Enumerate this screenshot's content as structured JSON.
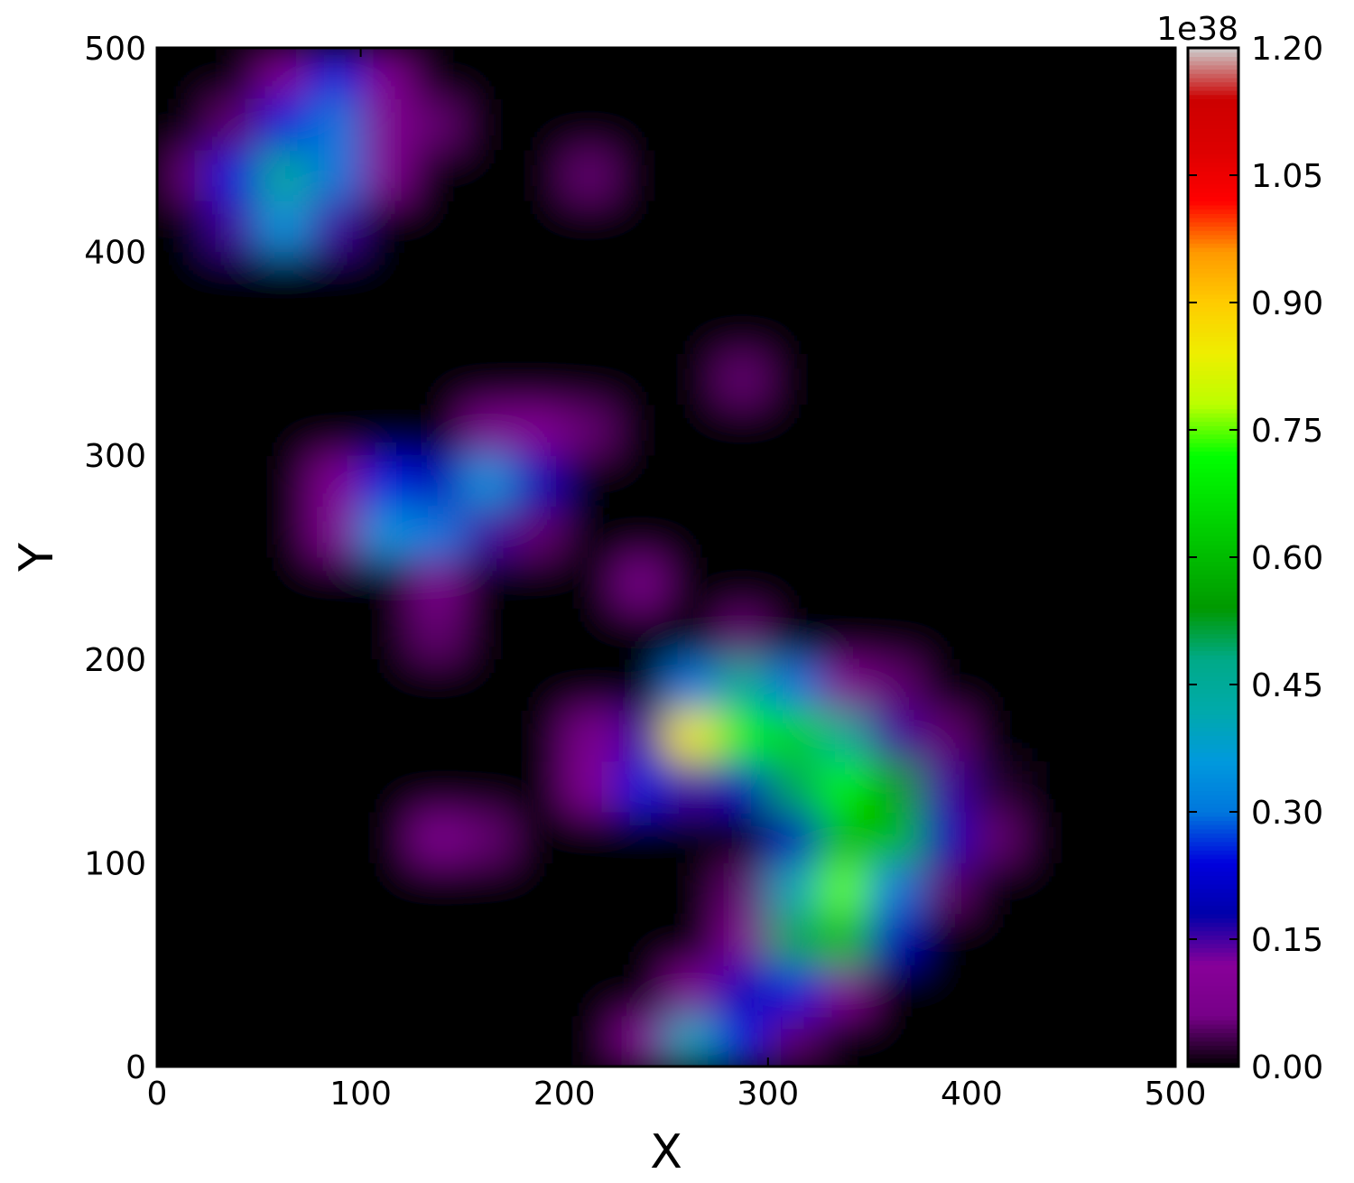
{
  "chart_data": {
    "type": "heatmap",
    "xlabel": "X",
    "ylabel": "Y",
    "xlim": [
      0,
      500
    ],
    "ylim": [
      0,
      500
    ],
    "xticks": [
      0,
      100,
      200,
      300,
      400,
      500
    ],
    "yticks": [
      0,
      100,
      200,
      300,
      400,
      500
    ],
    "colormap": "nipy_spectral",
    "zlim": [
      0,
      1.2
    ],
    "colorbar_offset_label": "1e38",
    "zticks": [
      {
        "value": 0,
        "label": "0.00"
      },
      {
        "value": 0.15,
        "label": "0.15"
      },
      {
        "value": 0.3,
        "label": "0.30"
      },
      {
        "value": 0.45,
        "label": "0.45"
      },
      {
        "value": 0.6,
        "label": "0.60"
      },
      {
        "value": 0.75,
        "label": "0.75"
      },
      {
        "value": 0.9,
        "label": "0.90"
      },
      {
        "value": 1.05,
        "label": "1.05"
      },
      {
        "value": 1.2,
        "label": "1.20"
      }
    ],
    "x": [
      12.5,
      37.5,
      62.5,
      87.5,
      112.5,
      137.5,
      162.5,
      187.5,
      212.5,
      237.5,
      262.5,
      287.5,
      312.5,
      337.5,
      362.5,
      387.5,
      412.5,
      437.5,
      462.5,
      487.5
    ],
    "y": [
      12.5,
      37.5,
      62.5,
      87.5,
      112.5,
      137.5,
      162.5,
      187.5,
      212.5,
      237.5,
      262.5,
      287.5,
      312.5,
      337.5,
      362.5,
      387.5,
      412.5,
      437.5,
      462.5,
      487.5
    ],
    "z": [
      [
        0,
        0,
        0,
        0,
        0,
        0,
        0,
        0,
        0,
        0.1,
        0.4,
        0.25,
        0.05,
        0,
        0,
        0,
        0,
        0,
        0,
        0
      ],
      [
        0,
        0,
        0,
        0,
        0,
        0,
        0,
        0,
        0,
        0,
        0.1,
        0.2,
        0.25,
        0.1,
        0,
        0,
        0,
        0,
        0,
        0
      ],
      [
        0,
        0,
        0,
        0,
        0,
        0,
        0,
        0,
        0,
        0,
        0,
        0.1,
        0.5,
        0.6,
        0.2,
        0,
        0,
        0,
        0,
        0
      ],
      [
        0,
        0,
        0,
        0,
        0,
        0,
        0,
        0,
        0,
        0,
        0,
        0.05,
        0.4,
        0.75,
        0.3,
        0.05,
        0,
        0,
        0,
        0
      ],
      [
        0,
        0,
        0,
        0,
        0,
        0.08,
        0.05,
        0,
        0,
        0,
        0,
        0,
        0.2,
        0.6,
        0.6,
        0.2,
        0.05,
        0,
        0,
        0
      ],
      [
        0,
        0,
        0,
        0,
        0,
        0,
        0,
        0,
        0.1,
        0.25,
        0.15,
        0.2,
        0.5,
        0.7,
        0.55,
        0.15,
        0.02,
        0,
        0,
        0
      ],
      [
        0,
        0,
        0,
        0,
        0,
        0,
        0,
        0,
        0.08,
        0.15,
        0.85,
        0.7,
        0.65,
        0.45,
        0.15,
        0.05,
        0,
        0,
        0,
        0
      ],
      [
        0,
        0,
        0,
        0,
        0,
        0,
        0,
        0,
        0,
        0,
        0.3,
        0.45,
        0.3,
        0.1,
        0.05,
        0,
        0,
        0,
        0,
        0
      ],
      [
        0,
        0,
        0,
        0,
        0,
        0.05,
        0,
        0,
        0,
        0,
        0,
        0.05,
        0,
        0,
        0,
        0,
        0,
        0,
        0,
        0
      ],
      [
        0,
        0,
        0,
        0,
        0,
        0.08,
        0,
        0,
        0,
        0.06,
        0,
        0,
        0,
        0,
        0,
        0,
        0,
        0,
        0,
        0
      ],
      [
        0,
        0,
        0,
        0.1,
        0.35,
        0.3,
        0.15,
        0.05,
        0,
        0,
        0,
        0,
        0,
        0,
        0,
        0,
        0,
        0,
        0,
        0
      ],
      [
        0,
        0,
        0,
        0.1,
        0.25,
        0.2,
        0.35,
        0.2,
        0,
        0,
        0,
        0,
        0,
        0,
        0,
        0,
        0,
        0,
        0,
        0
      ],
      [
        0,
        0,
        0,
        0,
        0,
        0,
        0.08,
        0.1,
        0.05,
        0,
        0,
        0,
        0,
        0,
        0,
        0,
        0,
        0,
        0,
        0
      ],
      [
        0,
        0,
        0,
        0,
        0,
        0,
        0,
        0,
        0,
        0,
        0,
        0.05,
        0,
        0,
        0,
        0,
        0,
        0,
        0,
        0
      ],
      [
        0,
        0,
        0,
        0,
        0,
        0,
        0,
        0,
        0,
        0,
        0,
        0,
        0,
        0,
        0,
        0,
        0,
        0,
        0,
        0
      ],
      [
        0,
        0,
        0,
        0,
        0,
        0,
        0,
        0,
        0,
        0,
        0,
        0,
        0,
        0,
        0,
        0,
        0,
        0,
        0,
        0
      ],
      [
        0,
        0.15,
        0.35,
        0.15,
        0,
        0,
        0,
        0,
        0,
        0,
        0,
        0,
        0,
        0,
        0,
        0,
        0,
        0,
        0,
        0
      ],
      [
        0.05,
        0.25,
        0.45,
        0.3,
        0.1,
        0,
        0,
        0,
        0.05,
        0,
        0,
        0,
        0,
        0,
        0,
        0,
        0,
        0,
        0,
        0
      ],
      [
        0,
        0.05,
        0.25,
        0.3,
        0.1,
        0.05,
        0,
        0,
        0,
        0,
        0,
        0,
        0,
        0,
        0,
        0,
        0,
        0,
        0,
        0
      ],
      [
        0,
        0,
        0.1,
        0.25,
        0.1,
        0,
        0,
        0,
        0,
        0,
        0,
        0,
        0,
        0,
        0,
        0,
        0,
        0,
        0,
        0
      ]
    ]
  }
}
